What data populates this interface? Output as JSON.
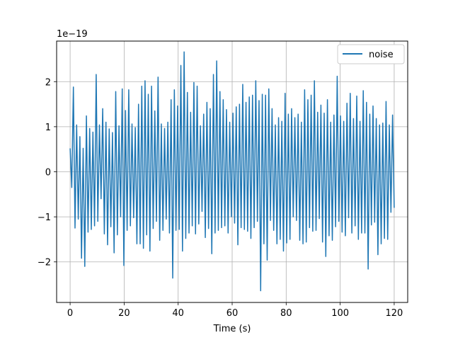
{
  "chart_data": {
    "type": "line",
    "title": "",
    "xlabel": "Time (s)",
    "ylabel": "",
    "y_offset_label": "1e−19",
    "xlim": [
      -5,
      125
    ],
    "ylim": [
      -2.9,
      2.9
    ],
    "x_ticks": [
      0,
      20,
      40,
      60,
      80,
      100,
      120
    ],
    "x_tick_labels": [
      "0",
      "20",
      "40",
      "60",
      "80",
      "100",
      "120"
    ],
    "y_ticks": [
      -2,
      -1,
      0,
      1,
      2
    ],
    "y_tick_labels": [
      "−2",
      "−1",
      "0",
      "1",
      "2"
    ],
    "grid": true,
    "legend": {
      "position": "top-right",
      "entries": [
        "noise"
      ]
    },
    "series": [
      {
        "name": "noise",
        "color": "#1f77b4",
        "x_range": [
          0,
          120
        ],
        "values": [
          0.52,
          -0.35,
          1.88,
          -1.25,
          1.04,
          -1.05,
          0.78,
          -1.92,
          0.52,
          -2.1,
          1.24,
          -1.34,
          0.96,
          -1.28,
          0.88,
          -1.2,
          2.16,
          -1.1,
          1.04,
          -0.6,
          1.4,
          -1.38,
          1.1,
          -1.62,
          0.95,
          -1.22,
          0.87,
          -1.8,
          1.78,
          -1.4,
          1.02,
          -1.0,
          1.84,
          -2.08,
          1.36,
          -1.3,
          1.82,
          -1.2,
          1.06,
          -1.02,
          0.98,
          -1.6,
          1.5,
          -1.6,
          1.9,
          -1.7,
          2.02,
          -1.4,
          1.72,
          -1.76,
          1.9,
          -1.26,
          1.35,
          -1.1,
          2.1,
          -1.52,
          1.06,
          -1.3,
          0.96,
          -1.05,
          1.1,
          -1.36,
          1.6,
          -2.36,
          1.82,
          -1.3,
          1.46,
          -1.28,
          2.36,
          -1.76,
          2.66,
          -1.48,
          1.76,
          -1.36,
          1.32,
          -1.2,
          1.98,
          -1.38,
          1.9,
          -1.16,
          1.02,
          -0.88,
          1.28,
          -1.46,
          1.54,
          -1.26,
          1.4,
          -1.82,
          2.16,
          -1.36,
          2.46,
          -1.3,
          1.78,
          -1.24,
          1.6,
          -1.2,
          1.38,
          -1.36,
          1.1,
          -1.0,
          1.3,
          -1.14,
          1.44,
          -1.62,
          1.5,
          -1.24,
          1.94,
          -1.28,
          1.54,
          -1.32,
          1.66,
          -1.48,
          1.7,
          -1.24,
          2.02,
          -1.1,
          1.58,
          -2.64,
          1.72,
          -1.6,
          1.7,
          -1.96,
          1.84,
          -1.08,
          1.4,
          -1.3,
          1.04,
          -1.6,
          1.2,
          -1.5,
          1.12,
          -1.76,
          1.74,
          -1.58,
          1.28,
          -1.5,
          1.4,
          -1.0,
          1.2,
          -1.08,
          1.28,
          -1.52,
          1.1,
          -1.6,
          1.82,
          -1.56,
          1.6,
          -1.24,
          1.7,
          -1.32,
          2.02,
          -1.3,
          1.32,
          -1.04,
          1.48,
          -1.56,
          1.3,
          -1.88,
          1.6,
          -1.42,
          1.1,
          -1.52,
          1.26,
          -1.22,
          2.12,
          -1.1,
          1.24,
          -1.34,
          1.12,
          -1.42,
          1.52,
          -1.02,
          1.74,
          -1.36,
          1.18,
          -1.2,
          1.68,
          -1.5,
          1.12,
          -1.36,
          1.8,
          -1.36,
          1.54,
          -2.16,
          1.28,
          -1.18,
          1.46,
          -1.12,
          1.18,
          -1.84,
          1.04,
          -1.6,
          1.08,
          -1.48,
          1.56,
          -1.5,
          1.04,
          -0.9,
          1.26,
          -0.8
        ]
      }
    ]
  }
}
